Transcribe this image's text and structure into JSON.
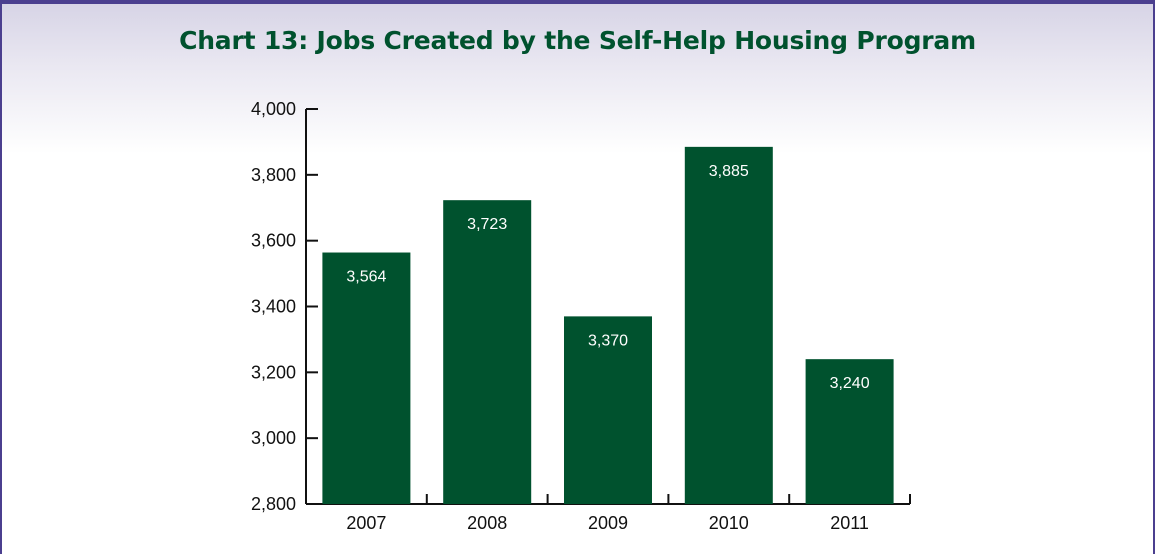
{
  "chart_data": {
    "type": "bar",
    "title": "Chart 13: Jobs Created by the Self-Help Housing Program",
    "xlabel": "",
    "ylabel": "",
    "categories": [
      "2007",
      "2008",
      "2009",
      "2010",
      "2011"
    ],
    "values": [
      3564,
      3723,
      3370,
      3885,
      3240
    ],
    "value_labels": [
      "3,564",
      "3,723",
      "3,370",
      "3,885",
      "3,240"
    ],
    "ylim": [
      2800,
      4000
    ],
    "yticks": [
      2800,
      3000,
      3200,
      3400,
      3600,
      3800,
      4000
    ],
    "ytick_labels": [
      "2,800",
      "3,000",
      "3,200",
      "3,400",
      "3,600",
      "3,800",
      "4,000"
    ],
    "grid": false,
    "legend": "none",
    "bar_color": "#00522e",
    "label_color": "#ffffff",
    "title_color": "#00522e",
    "frame_color": "#4b3f8f"
  }
}
